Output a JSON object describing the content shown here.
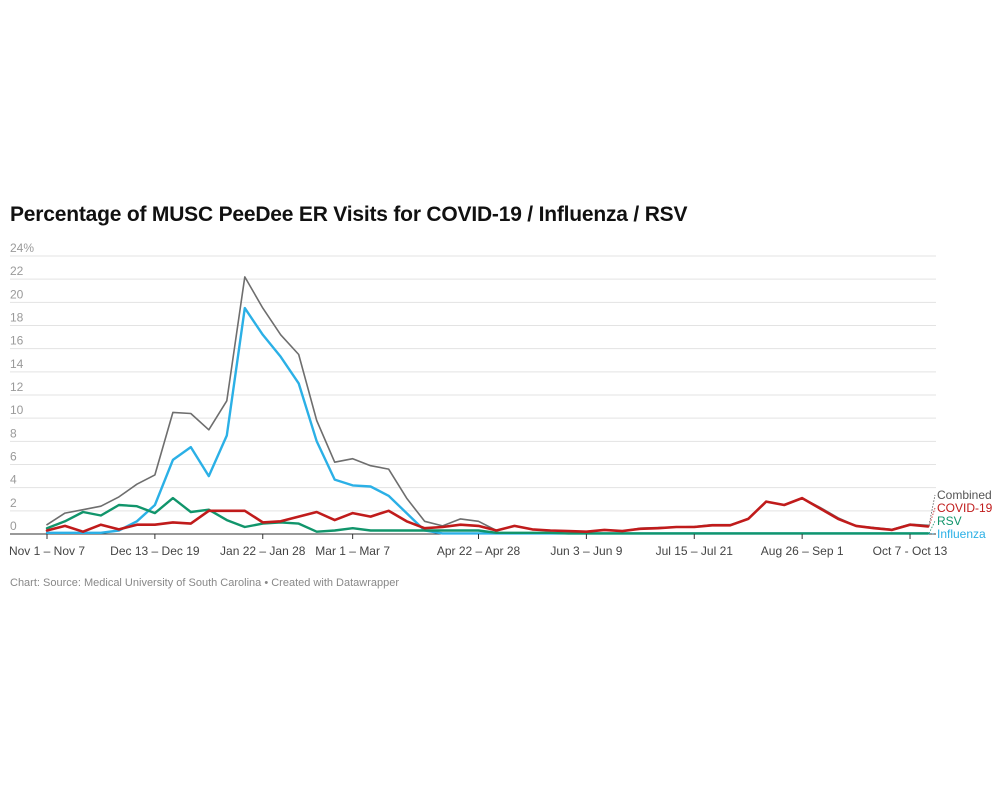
{
  "title": "Percentage of MUSC PeeDee ER Visits for COVID-19 / Influenza / RSV",
  "source": "Chart: Source: Medical University of South Carolina • Created with Datawrapper",
  "chart_data": {
    "type": "line",
    "title": "Percentage of MUSC PeeDee ER Visits for COVID-19 / Influenza / RSV",
    "xlabel": "",
    "ylabel": "",
    "ylim": [
      0,
      24
    ],
    "yticks": [
      0,
      2,
      4,
      6,
      8,
      10,
      12,
      14,
      16,
      18,
      20,
      22,
      24
    ],
    "ytick_labels": [
      "0",
      "2",
      "4",
      "6",
      "8",
      "10",
      "12",
      "14",
      "16",
      "18",
      "20",
      "22",
      "24%"
    ],
    "x_tick_labels": [
      {
        "index": 0,
        "label": "Nov 1 – Nov 7"
      },
      {
        "index": 6,
        "label": "Dec 13 – Dec 19"
      },
      {
        "index": 12,
        "label": "Jan 22 – Jan 28"
      },
      {
        "index": 17,
        "label": "Mar 1 – Mar 7"
      },
      {
        "index": 24,
        "label": "Apr 22 – Apr 28"
      },
      {
        "index": 30,
        "label": "Jun 3 – Jun 9"
      },
      {
        "index": 36,
        "label": "Jul 15 – Jul 21"
      },
      {
        "index": 42,
        "label": "Aug 26 – Sep 1"
      },
      {
        "index": 48,
        "label": "Oct 7 - Oct 13"
      }
    ],
    "grid": true,
    "legend": "end-of-line labels",
    "n_points": 50,
    "series": [
      {
        "name": "Combined",
        "color": "#6e6e6e",
        "width": 1.6,
        "values": [
          0.8,
          1.8,
          2.1,
          2.4,
          3.2,
          4.3,
          5.1,
          10.5,
          10.4,
          9.0,
          11.5,
          22.2,
          19.5,
          17.2,
          15.5,
          9.8,
          6.2,
          6.5,
          5.9,
          5.6,
          3.1,
          1.1,
          0.7,
          1.3,
          1.1,
          0.3,
          0.7,
          0.4,
          0.3,
          0.25,
          0.2,
          0.35,
          0.25,
          0.5,
          0.55,
          0.6,
          0.65,
          0.8,
          0.8,
          1.3,
          2.8,
          2.5,
          3.1,
          2.3,
          1.4,
          0.7,
          0.55,
          0.4,
          0.85,
          0.75
        ]
      },
      {
        "name": "Influenza",
        "color": "#2bb0e6",
        "width": 2.4,
        "values": [
          0.1,
          0.1,
          0.1,
          0.1,
          0.3,
          1.1,
          2.5,
          6.4,
          7.5,
          5.0,
          8.5,
          19.5,
          17.2,
          15.3,
          13.0,
          8.0,
          4.7,
          4.2,
          4.1,
          3.3,
          1.8,
          0.3,
          0.05,
          0.05,
          0.05,
          0.05,
          0.05,
          0.05,
          0.05,
          0.05,
          0.05,
          0.05,
          0.05,
          0.05,
          0.05,
          0.05,
          0.05,
          0.05,
          0.05,
          0.05,
          0.05,
          0.05,
          0.05,
          0.05,
          0.05,
          0.05,
          0.05,
          0.05,
          0.05,
          0.05
        ]
      },
      {
        "name": "RSV",
        "color": "#11956b",
        "width": 2.4,
        "values": [
          0.5,
          1.1,
          1.9,
          1.6,
          2.5,
          2.4,
          1.8,
          3.1,
          1.9,
          2.1,
          1.2,
          0.6,
          0.9,
          1.0,
          0.9,
          0.2,
          0.3,
          0.5,
          0.3,
          0.3,
          0.3,
          0.3,
          0.3,
          0.3,
          0.3,
          0.1,
          0.1,
          0.1,
          0.1,
          0.05,
          0.05,
          0.05,
          0.05,
          0.05,
          0.05,
          0.05,
          0.05,
          0.05,
          0.05,
          0.05,
          0.05,
          0.05,
          0.05,
          0.05,
          0.05,
          0.05,
          0.05,
          0.05,
          0.05,
          0.05
        ]
      },
      {
        "name": "COVID-19",
        "color": "#c01b1b",
        "width": 2.6,
        "values": [
          0.3,
          0.7,
          0.2,
          0.8,
          0.4,
          0.8,
          0.8,
          1.0,
          0.9,
          2.0,
          2.0,
          2.0,
          1.0,
          1.1,
          1.5,
          1.9,
          1.2,
          1.8,
          1.5,
          2.0,
          1.1,
          0.5,
          0.6,
          0.8,
          0.7,
          0.3,
          0.7,
          0.4,
          0.3,
          0.25,
          0.2,
          0.35,
          0.25,
          0.45,
          0.5,
          0.6,
          0.6,
          0.75,
          0.75,
          1.3,
          2.8,
          2.5,
          3.1,
          2.2,
          1.3,
          0.7,
          0.5,
          0.35,
          0.8,
          0.65
        ]
      }
    ],
    "series_label_order": [
      "Combined",
      "COVID-19",
      "RSV",
      "Influenza"
    ]
  }
}
